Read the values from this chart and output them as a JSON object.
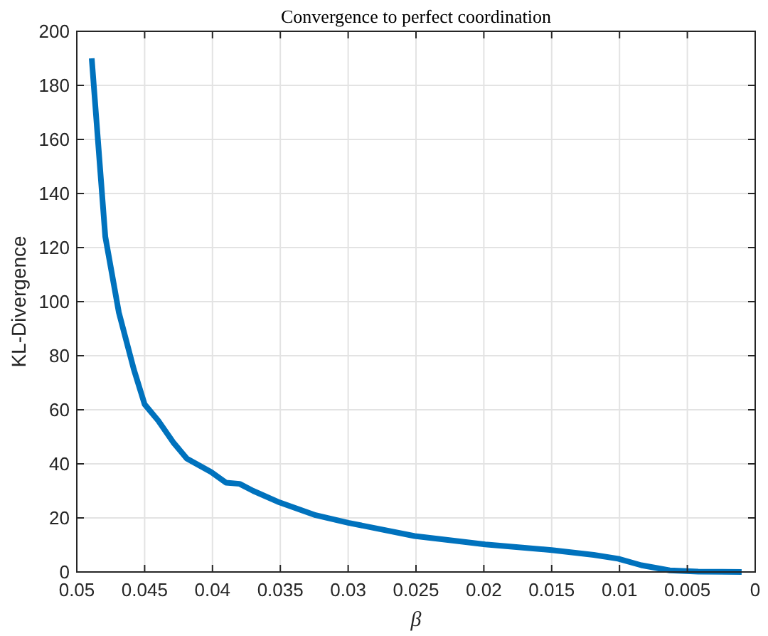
{
  "chart_data": {
    "type": "line",
    "title": "Convergence to perfect coordination",
    "xlabel": "β",
    "ylabel": "KL-Divergence",
    "xlim": [
      0.05,
      0
    ],
    "xticks": [
      0.05,
      0.045,
      0.04,
      0.035,
      0.03,
      0.025,
      0.02,
      0.015,
      0.01,
      0.005,
      0
    ],
    "ylim": [
      0,
      200
    ],
    "yticks": [
      0,
      20,
      40,
      60,
      80,
      100,
      120,
      140,
      160,
      180,
      200
    ],
    "grid": true,
    "series": [
      {
        "color": "#0072bd",
        "x": [
          0.0489,
          0.0479,
          0.0469,
          0.0458,
          0.045,
          0.044,
          0.0429,
          0.0419,
          0.0401,
          0.039,
          0.038,
          0.037,
          0.0352,
          0.0324,
          0.03,
          0.0251,
          0.0199,
          0.015,
          0.0119,
          0.0101,
          0.0084,
          0.0063,
          0.0042,
          0.001
        ],
        "values": [
          190,
          124,
          96,
          75,
          62,
          56,
          48,
          42,
          37,
          33,
          32.6,
          30,
          26,
          21,
          18.2,
          13.3,
          10.2,
          8.1,
          6.3,
          4.9,
          2.5,
          0.6,
          0.1,
          0
        ]
      }
    ]
  }
}
